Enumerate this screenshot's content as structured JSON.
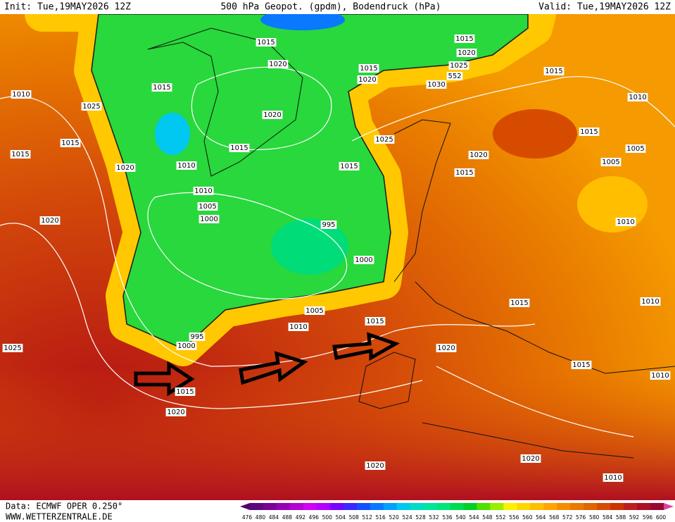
{
  "header": {
    "init": "Init: Tue,19MAY2026 12Z",
    "title": "500 hPa Geopot. (gpdm), Bodendruck (hPa)",
    "valid": "Valid: Tue,19MAY2026 12Z"
  },
  "footer": {
    "source": "Data: ECMWF OPER 0.250°",
    "site": "WWW.WETTERZENTRALE.DE"
  },
  "scale": {
    "labels": [
      476,
      480,
      484,
      488,
      492,
      496,
      500,
      504,
      508,
      512,
      516,
      520,
      524,
      528,
      532,
      536,
      540,
      544,
      548,
      552,
      556,
      560,
      564,
      568,
      572,
      576,
      580,
      584,
      588,
      592,
      596,
      600
    ],
    "colors": [
      "#5a0a7a",
      "#7a0096",
      "#9600b4",
      "#b400d2",
      "#d200f0",
      "#b400ff",
      "#7800ff",
      "#3c28ff",
      "#1450ff",
      "#0a78ff",
      "#00a0ff",
      "#00c8f0",
      "#00dcc8",
      "#00e6a0",
      "#00e678",
      "#00dc50",
      "#00d028",
      "#50e000",
      "#96f000",
      "#fff000",
      "#ffd700",
      "#ffbe00",
      "#ffa500",
      "#f58c00",
      "#eb7800",
      "#e16400",
      "#d74b00",
      "#cd3200",
      "#be1e1e",
      "#aa0f28",
      "#960a32"
    ],
    "under_color": "#50006e",
    "over_color": "#e040a0"
  },
  "isobar_labels": [
    "1015",
    "1015",
    "1020",
    "1025",
    "552",
    "1015",
    "1020",
    "1030",
    "1015",
    "1010",
    "1025",
    "1015",
    "1020",
    "1020",
    "1010",
    "1015",
    "1015",
    "1015",
    "1020",
    "1010",
    "1015",
    "1025",
    "1015",
    "1020",
    "1015",
    "1005",
    "1005",
    "1010",
    "1005",
    "1000",
    "995",
    "1020",
    "1010",
    "1000",
    "1015",
    "1010",
    "1005",
    "1010",
    "1015",
    "995",
    "1000",
    "1025",
    "1020",
    "1015",
    "1010",
    "1015",
    "1020",
    "1020",
    "1020",
    "1010"
  ]
}
